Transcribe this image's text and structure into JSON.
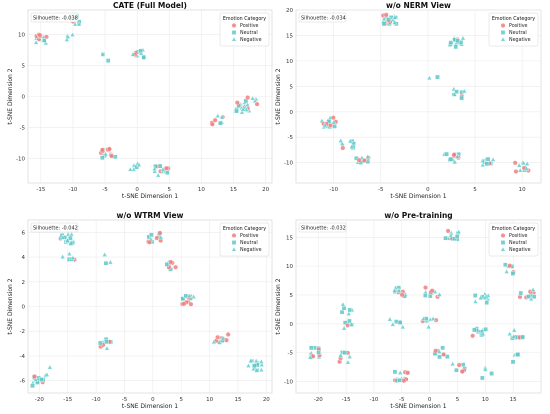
{
  "figure": {
    "background": "#ffffff",
    "panel_background": "#ffffff",
    "grid_color": "#ebebeb",
    "legend_title": "Emotion Category",
    "legend_labels": [
      "Positive",
      "Neutral",
      "Negative"
    ],
    "colors": {
      "Positive": "#f08080",
      "Neutral": "#5fc7c7",
      "Negative": "#63cfd0"
    },
    "markers": {
      "Positive": "circle",
      "Neutral": "square",
      "Negative": "triangle"
    }
  },
  "chart_data": [
    {
      "type": "scatter",
      "title": "CATE (Full Model)",
      "xlabel": "t-SNE Dimension 1",
      "ylabel": "t-SNE Dimension 2",
      "silhouette": "Silhouette: -0.038",
      "xlim": [
        -17,
        21
      ],
      "ylim": [
        -14,
        14
      ],
      "xticks": [
        -15,
        -10,
        -5,
        0,
        5,
        10,
        15,
        20
      ],
      "yticks": [
        -10,
        -5,
        0,
        5,
        10
      ],
      "legend_position": "top-right",
      "grid": true,
      "clusters": [
        {
          "x": -15,
          "y": 9.3,
          "count": 14,
          "mix": [
            0.4,
            0.3,
            0.3
          ]
        },
        {
          "x": -9.5,
          "y": 12.5,
          "count": 14,
          "mix": [
            0.1,
            0.45,
            0.45
          ]
        },
        {
          "x": -11.2,
          "y": 10.0,
          "count": 4,
          "mix": [
            0.2,
            0.4,
            0.4
          ]
        },
        {
          "x": -5.5,
          "y": 6.5,
          "count": 3,
          "mix": [
            0.0,
            0.5,
            0.5
          ]
        },
        {
          "x": 0.2,
          "y": 6.7,
          "count": 10,
          "mix": [
            0.1,
            0.5,
            0.4
          ]
        },
        {
          "x": -4.5,
          "y": -9.3,
          "count": 16,
          "mix": [
            0.35,
            0.35,
            0.3
          ]
        },
        {
          "x": 0.0,
          "y": -11.2,
          "count": 6,
          "mix": [
            0.2,
            0.4,
            0.4
          ]
        },
        {
          "x": 3.8,
          "y": -12.0,
          "count": 14,
          "mix": [
            0.4,
            0.3,
            0.3
          ]
        },
        {
          "x": 12.5,
          "y": -3.8,
          "count": 8,
          "mix": [
            0.5,
            0.25,
            0.25
          ]
        },
        {
          "x": 16.5,
          "y": -1.8,
          "count": 18,
          "mix": [
            0.15,
            0.45,
            0.4
          ]
        },
        {
          "x": 18.0,
          "y": -1.0,
          "count": 6,
          "mix": [
            0.3,
            0.35,
            0.35
          ]
        }
      ]
    },
    {
      "type": "scatter",
      "title": "w/o NERM View",
      "xlabel": "t-SNE Dimension 1",
      "ylabel": "t-SNE Dimension 2",
      "silhouette": "Silhouette: -0.034",
      "xlim": [
        -14,
        12
      ],
      "ylim": [
        -14,
        20
      ],
      "xticks": [
        -10,
        -5,
        0,
        5,
        10
      ],
      "yticks": [
        -10,
        -5,
        0,
        5,
        10,
        15,
        20
      ],
      "legend_position": "top-right",
      "grid": true,
      "clusters": [
        {
          "x": -4.0,
          "y": 18.2,
          "count": 22,
          "mix": [
            0.25,
            0.4,
            0.35
          ]
        },
        {
          "x": 3.0,
          "y": 13.5,
          "count": 14,
          "mix": [
            0.1,
            0.45,
            0.45
          ]
        },
        {
          "x": 0.5,
          "y": 7.5,
          "count": 2,
          "mix": [
            0.0,
            0.5,
            0.5
          ]
        },
        {
          "x": 3.2,
          "y": 3.5,
          "count": 8,
          "mix": [
            0.1,
            0.45,
            0.45
          ]
        },
        {
          "x": -10.5,
          "y": -2.0,
          "count": 18,
          "mix": [
            0.35,
            0.35,
            0.3
          ]
        },
        {
          "x": -8.5,
          "y": -6.5,
          "count": 10,
          "mix": [
            0.2,
            0.4,
            0.4
          ]
        },
        {
          "x": -7.0,
          "y": -9.5,
          "count": 10,
          "mix": [
            0.3,
            0.35,
            0.35
          ]
        },
        {
          "x": 2.5,
          "y": -9.3,
          "count": 12,
          "mix": [
            0.35,
            0.35,
            0.3
          ]
        },
        {
          "x": 6.5,
          "y": -10.0,
          "count": 10,
          "mix": [
            0.3,
            0.35,
            0.35
          ]
        },
        {
          "x": 10.0,
          "y": -11.0,
          "count": 12,
          "mix": [
            0.35,
            0.35,
            0.3
          ]
        }
      ]
    },
    {
      "type": "scatter",
      "title": "w/o WTRM View",
      "xlabel": "t-SNE Dimension 1",
      "ylabel": "t-SNE Dimension 2",
      "silhouette": "Silhouette: -0.042",
      "xlim": [
        -22,
        21
      ],
      "ylim": [
        -7,
        7
      ],
      "xticks": [
        -20,
        -15,
        -10,
        -5,
        0,
        5,
        10,
        15,
        20
      ],
      "yticks": [
        -6,
        -4,
        -2,
        0,
        2,
        4,
        6
      ],
      "legend_position": "top-right",
      "grid": true,
      "clusters": [
        {
          "x": -15.0,
          "y": 5.5,
          "count": 14,
          "mix": [
            0.1,
            0.45,
            0.45
          ]
        },
        {
          "x": -14.8,
          "y": 4.2,
          "count": 6,
          "mix": [
            0.1,
            0.45,
            0.45
          ]
        },
        {
          "x": -8.5,
          "y": 3.9,
          "count": 3,
          "mix": [
            0.0,
            0.5,
            0.5
          ]
        },
        {
          "x": 0.5,
          "y": 5.6,
          "count": 14,
          "mix": [
            0.35,
            0.35,
            0.3
          ]
        },
        {
          "x": 3.0,
          "y": 3.2,
          "count": 8,
          "mix": [
            0.3,
            0.35,
            0.35
          ]
        },
        {
          "x": 6.0,
          "y": 0.5,
          "count": 14,
          "mix": [
            0.45,
            0.3,
            0.25
          ]
        },
        {
          "x": 12.0,
          "y": -2.5,
          "count": 10,
          "mix": [
            0.45,
            0.3,
            0.25
          ]
        },
        {
          "x": 18.0,
          "y": -4.8,
          "count": 16,
          "mix": [
            0.2,
            0.4,
            0.4
          ]
        },
        {
          "x": -8.0,
          "y": -3.0,
          "count": 10,
          "mix": [
            0.3,
            0.35,
            0.35
          ]
        },
        {
          "x": -20.5,
          "y": -6.0,
          "count": 14,
          "mix": [
            0.2,
            0.4,
            0.4
          ]
        },
        {
          "x": -18.5,
          "y": -5.2,
          "count": 3,
          "mix": [
            0.3,
            0.35,
            0.35
          ]
        }
      ]
    },
    {
      "type": "scatter",
      "title": "w/o Pre-training",
      "xlabel": "t-SNE Dimension 1",
      "ylabel": "t-SNE Dimension 2",
      "silhouette": "Silhouette: -0.032",
      "xlim": [
        -24,
        20
      ],
      "ylim": [
        -12,
        18
      ],
      "xticks": [
        -20,
        -15,
        -10,
        -5,
        0,
        5,
        10,
        15
      ],
      "yticks": [
        -10,
        -5,
        0,
        5,
        10,
        15
      ],
      "legend_position": "top-right",
      "grid": true,
      "clusters": [
        {
          "x": 4.0,
          "y": 15.5,
          "count": 12,
          "mix": [
            0.1,
            0.45,
            0.45
          ]
        },
        {
          "x": -15.0,
          "y": 2.5,
          "count": 6,
          "mix": [
            0.1,
            0.45,
            0.45
          ]
        },
        {
          "x": -15.0,
          "y": -0.2,
          "count": 6,
          "mix": [
            0.1,
            0.45,
            0.45
          ]
        },
        {
          "x": -21.0,
          "y": -5.0,
          "count": 14,
          "mix": [
            0.3,
            0.35,
            0.35
          ]
        },
        {
          "x": -15.0,
          "y": -5.8,
          "count": 8,
          "mix": [
            0.1,
            0.45,
            0.45
          ]
        },
        {
          "x": -5.0,
          "y": 5.5,
          "count": 10,
          "mix": [
            0.3,
            0.35,
            0.35
          ]
        },
        {
          "x": -6.0,
          "y": 0.0,
          "count": 6,
          "mix": [
            0.15,
            0.45,
            0.4
          ]
        },
        {
          "x": -5.0,
          "y": -9.0,
          "count": 14,
          "mix": [
            0.3,
            0.35,
            0.35
          ]
        },
        {
          "x": 0.5,
          "y": 5.5,
          "count": 10,
          "mix": [
            0.3,
            0.35,
            0.35
          ]
        },
        {
          "x": 0.0,
          "y": 0.0,
          "count": 8,
          "mix": [
            0.25,
            0.4,
            0.35
          ]
        },
        {
          "x": 2.0,
          "y": -5.0,
          "count": 10,
          "mix": [
            0.2,
            0.4,
            0.4
          ]
        },
        {
          "x": 5.0,
          "y": -7.5,
          "count": 8,
          "mix": [
            0.2,
            0.4,
            0.4
          ]
        },
        {
          "x": 9.5,
          "y": 4.5,
          "count": 10,
          "mix": [
            0.2,
            0.4,
            0.4
          ]
        },
        {
          "x": 14.0,
          "y": 9.5,
          "count": 8,
          "mix": [
            0.25,
            0.4,
            0.35
          ]
        },
        {
          "x": 17.5,
          "y": 5.0,
          "count": 10,
          "mix": [
            0.35,
            0.35,
            0.3
          ]
        },
        {
          "x": 9.0,
          "y": -1.5,
          "count": 10,
          "mix": [
            0.2,
            0.4,
            0.4
          ]
        },
        {
          "x": 15.5,
          "y": -2.0,
          "count": 10,
          "mix": [
            0.3,
            0.35,
            0.35
          ]
        },
        {
          "x": 16.0,
          "y": -6.0,
          "count": 4,
          "mix": [
            0.0,
            0.5,
            0.5
          ]
        },
        {
          "x": 10.5,
          "y": -8.5,
          "count": 4,
          "mix": [
            0.1,
            0.45,
            0.45
          ]
        }
      ]
    }
  ]
}
